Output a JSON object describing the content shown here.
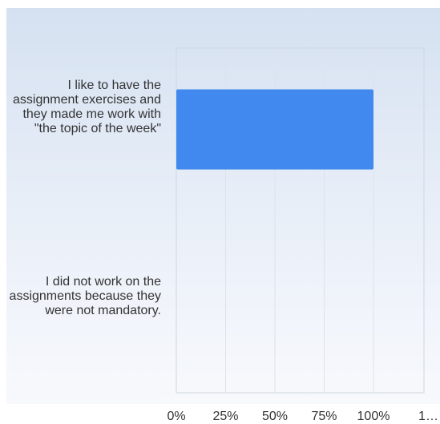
{
  "chart_data": {
    "type": "bar",
    "orientation": "horizontal",
    "categories": [
      "I like to have the assignment exercises and they made me work with \"the topic of the week\"",
      "I did not work on the assignments because they were not mandatory."
    ],
    "values": [
      100,
      0
    ],
    "x_ticks": [
      "0%",
      "25%",
      "50%",
      "75%",
      "100%",
      "1…"
    ],
    "xlim": [
      0,
      125
    ],
    "grid": true,
    "bar_color": "#4189ee"
  }
}
